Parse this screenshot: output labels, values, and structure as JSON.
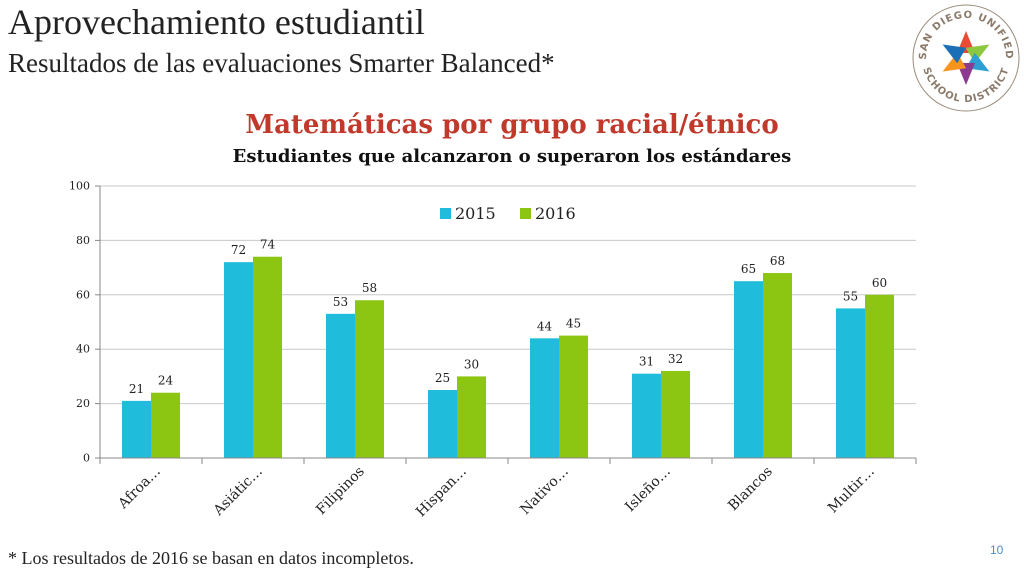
{
  "slide": {
    "title": "Aprovechamiento estudiantil",
    "subtitle": "Resultados de las evaluaciones Smarter Balanced*",
    "footnote": "* Los resultados de 2016 se basan en datos incompletos.",
    "page_number": "10"
  },
  "logo": {
    "text_top": "SAN DIEGO UNIFIED",
    "text_bottom": "SCHOOL DISTRICT",
    "colors": [
      "#e94b35",
      "#8dc63f",
      "#2e9fd3",
      "#8b3a8f",
      "#f7941d",
      "#1b6fb6"
    ]
  },
  "chart_data": {
    "type": "bar",
    "title": "Matemáticas por grupo racial/étnico",
    "subtitle": "Estudiantes que alcanzaron o superaron los estándares",
    "categories": [
      "Afroa…",
      "Asiátic…",
      "Filipinos",
      "Hispan…",
      "Nativo…",
      "Isleño…",
      "Blancos",
      "Multir…"
    ],
    "series": [
      {
        "name": "2015",
        "color": "#1fbcdb",
        "values": [
          21,
          72,
          53,
          25,
          44,
          31,
          65,
          55
        ]
      },
      {
        "name": "2016",
        "color": "#8cc612",
        "values": [
          24,
          74,
          58,
          30,
          45,
          32,
          68,
          60
        ]
      }
    ],
    "ylim": [
      0,
      100
    ],
    "yticks": [
      0,
      20,
      40,
      60,
      80,
      100
    ],
    "grid": true,
    "legend_position": "top-center"
  }
}
